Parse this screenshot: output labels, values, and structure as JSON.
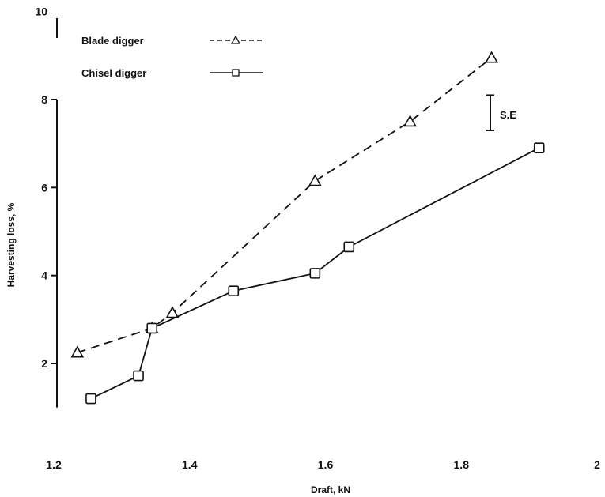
{
  "chart_data": {
    "type": "line",
    "title": "",
    "xlabel": "Draft,  kN",
    "ylabel": "Harvesting loss,  %",
    "xlim": [
      1.2,
      2.0
    ],
    "ylim": [
      1,
      10
    ],
    "x_ticks": [
      "1.2",
      "1.4",
      "1.6",
      "1.8",
      "2"
    ],
    "y_ticks": [
      "2",
      "4",
      "6",
      "8",
      "10"
    ],
    "grid": false,
    "legend_position": "top-left",
    "series": [
      {
        "name": "Blade digger",
        "marker": "triangle",
        "line_style": "dashed",
        "x": [
          1.23,
          1.34,
          1.37,
          1.58,
          1.72,
          1.84
        ],
        "y": [
          2.25,
          2.8,
          3.15,
          6.15,
          7.5,
          8.95
        ]
      },
      {
        "name": "Chisel digger",
        "marker": "square",
        "line_style": "solid",
        "x": [
          1.25,
          1.32,
          1.34,
          1.46,
          1.58,
          1.63,
          1.91
        ],
        "y": [
          1.2,
          1.72,
          2.8,
          3.65,
          4.05,
          4.65,
          6.9
        ]
      }
    ],
    "error_bar": {
      "label": "S.E",
      "x": 1.84,
      "y_low": 7.3,
      "y_high": 8.1
    }
  }
}
